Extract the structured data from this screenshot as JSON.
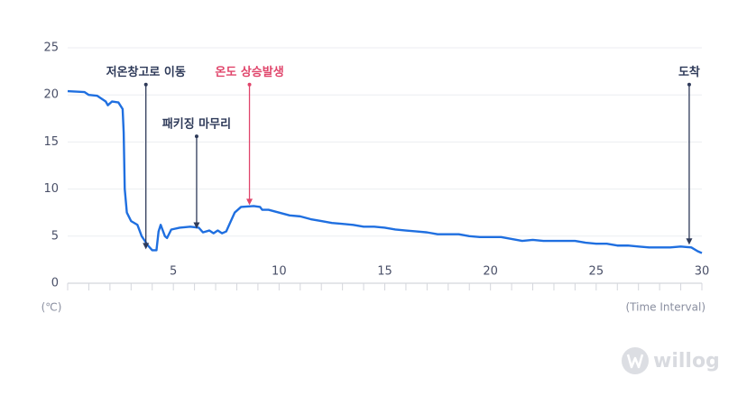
{
  "chart_data": {
    "type": "line",
    "y_axis_label": "(℃)",
    "x_axis_label": "(Time Interval)",
    "watermark": "willog",
    "xlim": [
      0,
      30
    ],
    "ylim": [
      0,
      25
    ],
    "xticks": [
      5,
      10,
      15,
      20,
      25,
      30
    ],
    "xminorticks": [
      0,
      1,
      2,
      3,
      4,
      5,
      6,
      7,
      8,
      9,
      10,
      11,
      12,
      13,
      14,
      15,
      16,
      17,
      18,
      19,
      20,
      21,
      22,
      23,
      24,
      25,
      26,
      27,
      28,
      29,
      30
    ],
    "yticks": [
      0,
      5,
      10,
      15,
      20,
      25
    ],
    "grid": true,
    "series": [
      {
        "color": "#1f6fe0",
        "x": [
          0,
          0.8,
          1,
          1.4,
          1.8,
          1.9,
          2.1,
          2.4,
          2.6,
          2.65,
          2.7,
          2.8,
          3.0,
          3.3,
          3.5,
          3.8,
          4.0,
          4.2,
          4.3,
          4.4,
          4.6,
          4.7,
          4.9,
          5.3,
          5.8,
          6.2,
          6.4,
          6.7,
          6.9,
          7.1,
          7.3,
          7.5,
          7.7,
          7.9,
          8.2,
          8.8,
          9.1,
          9.2,
          9.5,
          10,
          10.5,
          11,
          11.5,
          12,
          12.5,
          13,
          13.5,
          14,
          14.5,
          15,
          15.5,
          16,
          16.5,
          17,
          17.5,
          18,
          18.5,
          19,
          19.5,
          20,
          20.5,
          21,
          21.5,
          22,
          22.5,
          23,
          23.5,
          24,
          24.5,
          25,
          25.5,
          26,
          26.5,
          27,
          27.5,
          28,
          28.5,
          29,
          29.5,
          29.8,
          30
        ],
        "values": [
          20.4,
          20.3,
          20.0,
          19.9,
          19.3,
          18.9,
          19.3,
          19.2,
          18.5,
          16,
          10,
          7.5,
          6.6,
          6.2,
          5.0,
          4.0,
          3.5,
          3.5,
          5.5,
          6.2,
          5.0,
          4.8,
          5.7,
          5.9,
          6.0,
          5.9,
          5.4,
          5.6,
          5.3,
          5.6,
          5.3,
          5.5,
          6.5,
          7.5,
          8.1,
          8.2,
          8.1,
          7.8,
          7.8,
          7.5,
          7.2,
          7.1,
          6.8,
          6.6,
          6.4,
          6.3,
          6.2,
          6.0,
          6.0,
          5.9,
          5.7,
          5.6,
          5.5,
          5.4,
          5.2,
          5.2,
          5.2,
          5.0,
          4.9,
          4.9,
          4.9,
          4.7,
          4.5,
          4.6,
          4.5,
          4.5,
          4.5,
          4.5,
          4.3,
          4.2,
          4.2,
          4.0,
          4.0,
          3.9,
          3.8,
          3.8,
          3.8,
          3.9,
          3.8,
          3.4,
          3.2
        ]
      }
    ],
    "annotations": [
      {
        "text": "저온창고로 이동",
        "x": 3.7,
        "y": 3.6,
        "label_y": 21.1,
        "color": "#2e3a59"
      },
      {
        "text": "패키징 마무리",
        "x": 6.1,
        "y": 5.8,
        "label_y": 15.6,
        "color": "#2e3a59"
      },
      {
        "text": "온도 상승발생",
        "x": 8.6,
        "y": 8.3,
        "label_y": 21.1,
        "color": "#e0456b"
      },
      {
        "text": "도착",
        "x": 29.4,
        "y": 4.1,
        "label_y": 21.1,
        "color": "#2e3a59"
      }
    ]
  }
}
